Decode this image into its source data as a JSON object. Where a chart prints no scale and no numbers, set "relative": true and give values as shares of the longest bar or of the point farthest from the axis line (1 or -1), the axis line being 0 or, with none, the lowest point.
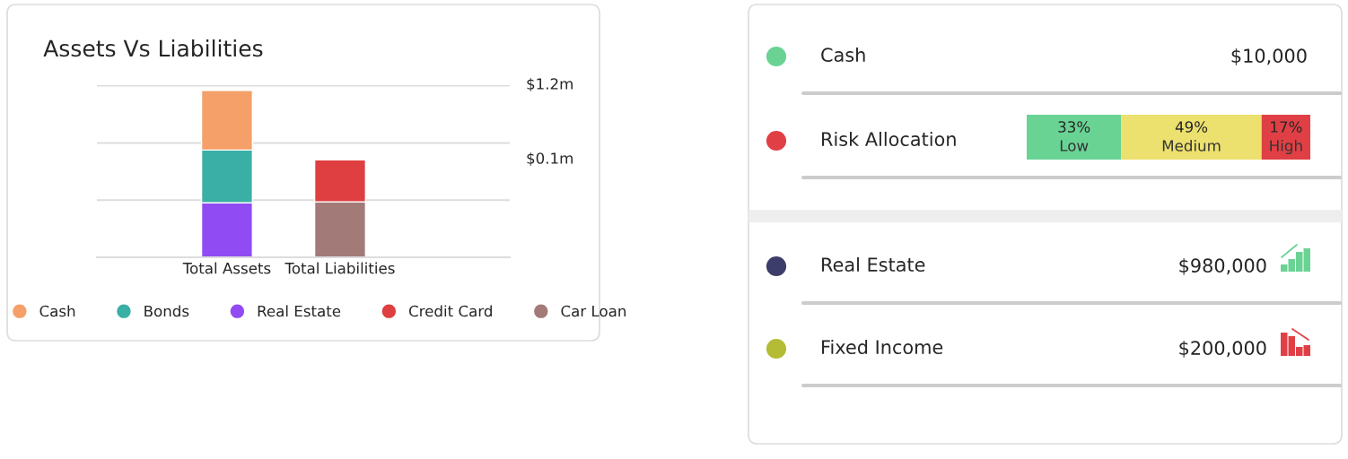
{
  "chart_data": [
    {
      "type": "bar",
      "title": "Assets Vs Liabilities",
      "stacked": true,
      "relative": true,
      "legend": "bottom",
      "marker": "circle",
      "categories": [
        "Total Assets",
        "Total Liabilities"
      ],
      "series": [
        {
          "name": "Real Estate",
          "color": "#914bf2",
          "values": [
            0.326,
            null
          ]
        },
        {
          "name": "Bonds",
          "color": "#3aafa5",
          "values": [
            0.316,
            null
          ]
        },
        {
          "name": "Cash",
          "color": "#f4a068",
          "values": [
            0.358,
            null
          ]
        },
        {
          "name": "Car Loan",
          "color": "#a27b78",
          "values": [
            null,
            0.332
          ]
        },
        {
          "name": "Credit Card",
          "color": "#df3f40",
          "values": [
            null,
            0.251
          ]
        }
      ],
      "ref_lines": [
        {
          "axis": "y",
          "value": 0.342,
          "color": "#dddddd"
        },
        {
          "axis": "y",
          "value": 0.684,
          "color": "#dddddd"
        },
        {
          "axis": "y",
          "value": 1.027,
          "color": "#dddddd"
        }
      ],
      "annotations": [
        "$1.2m",
        "$0.1m"
      ]
    },
    {
      "type": "other",
      "categories": [
        "Cash",
        "Risk Allocation",
        "Real Estate",
        "Fixed Income"
      ],
      "value_labels": [
        "$10,000",
        null,
        "$980,000",
        "$200,000"
      ],
      "colors": [
        "#6ad394",
        "#e04045",
        "#3d3d6b",
        "#b4bc35"
      ]
    },
    {
      "type": "bar",
      "orientation": "horizontal",
      "stacked": true,
      "categories": [
        null
      ],
      "xlim": [
        0,
        99
      ],
      "tick_labels": false,
      "series": [
        {
          "name": "Low",
          "color": "#69d394",
          "values": [
            33
          ],
          "value_labels": [
            "33%"
          ]
        },
        {
          "name": "Medium",
          "color": "#ece06e",
          "values": [
            49
          ],
          "value_labels": [
            "49%"
          ]
        },
        {
          "name": "High",
          "color": "#e04045",
          "values": [
            17
          ],
          "value_labels": [
            "17%"
          ]
        }
      ]
    }
  ]
}
